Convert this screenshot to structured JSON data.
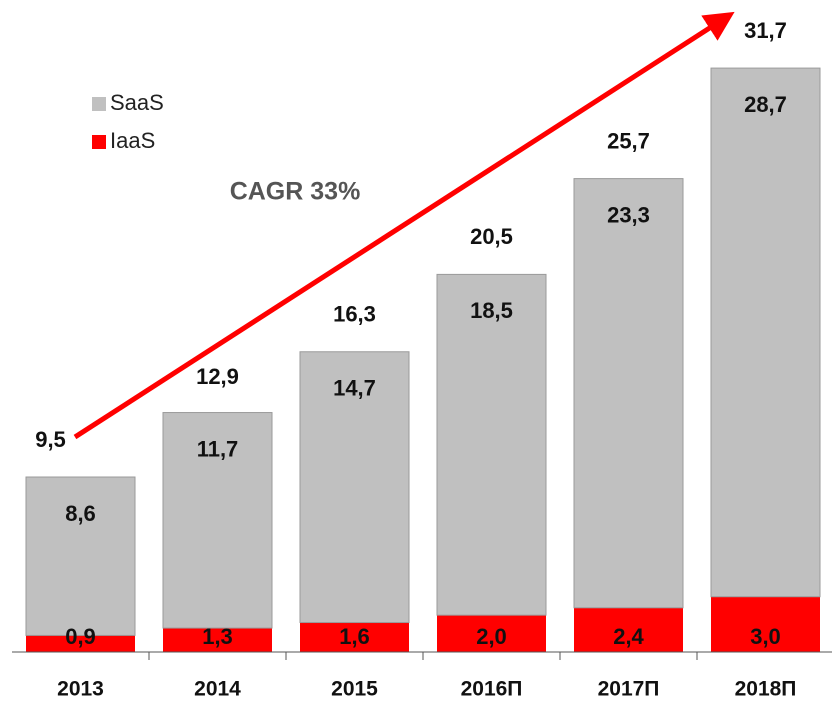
{
  "chart_data": {
    "type": "stacked_bar",
    "categories": [
      "2013",
      "2014",
      "2015",
      "2016П",
      "2017П",
      "2018П"
    ],
    "series": [
      {
        "name": "IaaS",
        "color": "#ff0000",
        "values": [
          0.9,
          1.3,
          1.6,
          2.0,
          2.4,
          3.0
        ],
        "value_labels": [
          "0,9",
          "1,3",
          "1,6",
          "2,0",
          "2,4",
          "3,0"
        ]
      },
      {
        "name": "SaaS",
        "color": "#c0c0c0",
        "values": [
          8.6,
          11.7,
          14.7,
          18.5,
          23.3,
          28.7
        ],
        "value_labels": [
          "8,6",
          "11,7",
          "14,7",
          "18,5",
          "23,3",
          "28,7"
        ]
      }
    ],
    "totals": [
      9.5,
      12.9,
      16.3,
      20.5,
      25.7,
      31.7
    ],
    "total_labels": [
      "9,5",
      "12,9",
      "16,3",
      "20,5",
      "25,7",
      "31,7"
    ],
    "annotation": "CAGR 33%"
  }
}
